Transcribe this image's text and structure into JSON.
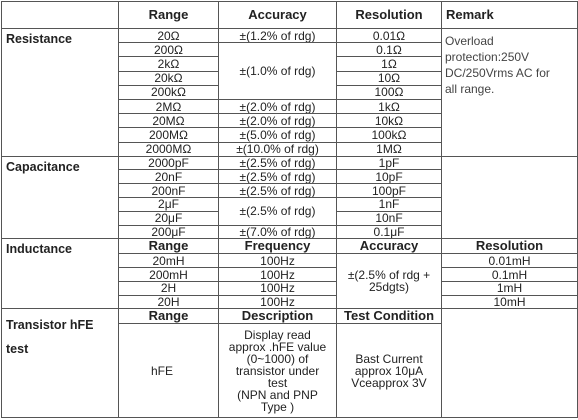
{
  "header": {
    "range": "Range",
    "accuracy": "Accuracy",
    "resolution": "Resolution",
    "remark": "Remark"
  },
  "resistance": {
    "label": "Resistance",
    "ranges": [
      "20Ω",
      "200Ω",
      "2kΩ",
      "20kΩ",
      "200kΩ",
      "2MΩ",
      "20MΩ",
      "200MΩ",
      "2000MΩ"
    ],
    "accuracy": [
      "±(1.2% of rdg)",
      "±(1.0% of rdg)",
      "±(2.0% of rdg)",
      "±(2.0% of rdg)",
      "±(5.0% of rdg)",
      "±(10.0% of rdg)"
    ],
    "resolutions": [
      "0.01Ω",
      "0.1Ω",
      "1Ω",
      "10Ω",
      "100Ω",
      "1kΩ",
      "10kΩ",
      "100kΩ",
      "1MΩ"
    ],
    "remark": [
      "Overload",
      "protection:250V",
      "DC/250Vrms AC for",
      "all range."
    ]
  },
  "capacitance": {
    "label": "Capacitance",
    "ranges": [
      "2000pF",
      "20nF",
      "200nF",
      "2μF",
      "20μF",
      "200μF"
    ],
    "accuracy": [
      "±(2.5% of rdg)",
      "±(2.5% of rdg)",
      "±(2.5% of rdg)",
      "±(2.5% of rdg)",
      "±(7.0% of rdg)"
    ],
    "resolutions": [
      "1pF",
      "10pF",
      "100pF",
      "1nF",
      "10nF",
      "0.1μF"
    ]
  },
  "inductance": {
    "label": "Inductance",
    "columns": [
      "Range",
      "Frequency",
      "Accuracy",
      "Resolution"
    ],
    "ranges": [
      "20mH",
      "200mH",
      "2H",
      "20H"
    ],
    "frequencies": [
      "100Hz",
      "100Hz",
      "100Hz",
      "100Hz"
    ],
    "accuracy": [
      "±(2.5% of rdg +",
      "25dgts)"
    ],
    "resolutions": [
      "0.01mH",
      "0.1mH",
      "1mH",
      "10mH"
    ]
  },
  "transistor": {
    "label": "Transistor hFE test",
    "columns": [
      "Range",
      "Description",
      "Test Condition"
    ],
    "range": "hFE",
    "description": [
      "Display read",
      "approx .hFE value",
      "(0~1000) of",
      "transistor under",
      "test",
      "(NPN and PNP",
      "Type )"
    ],
    "test_condition": [
      "Bast Current",
      "approx 10μA",
      "Vceapprox 3V"
    ]
  }
}
